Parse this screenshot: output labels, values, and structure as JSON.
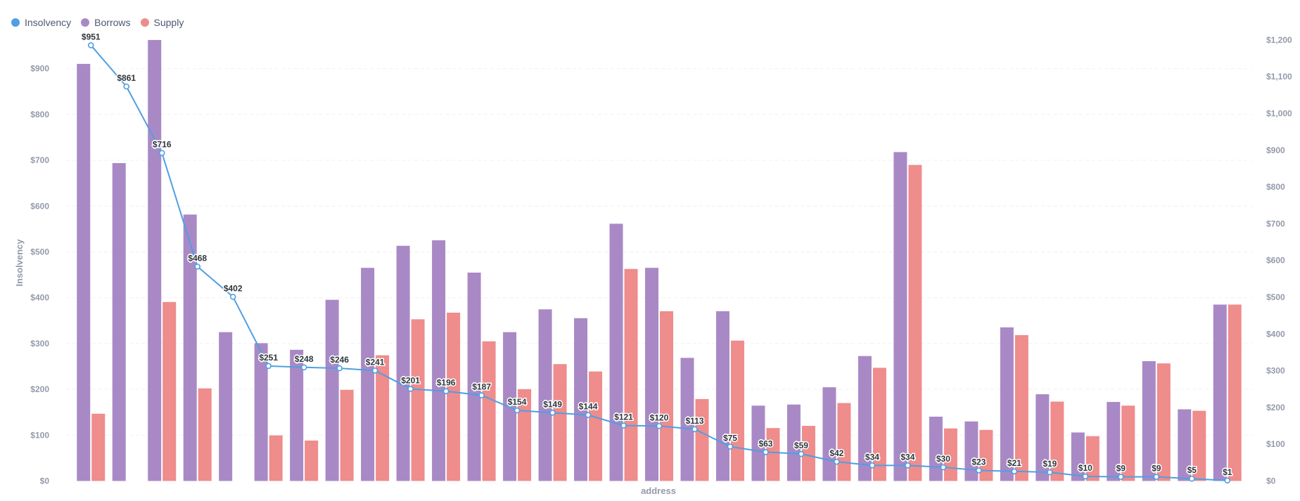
{
  "legend": [
    {
      "name": "Insolvency",
      "color": "#509ee3"
    },
    {
      "name": "Borrows",
      "color": "#a989c5"
    },
    {
      "name": "Supply",
      "color": "#ef8c8c"
    }
  ],
  "chart_data": {
    "type": "bar",
    "xlabel": "address",
    "ylabel": "Insolvency",
    "y_left_lim": [
      0,
      951
    ],
    "y_right_lim": [
      0,
      1200
    ],
    "y_left_ticks": [
      "$0",
      "$100",
      "$200",
      "$300",
      "$400",
      "$500",
      "$600",
      "$700",
      "$800",
      "$900"
    ],
    "y_right_ticks": [
      "$0",
      "$100",
      "$200",
      "$300",
      "$400",
      "$500",
      "$600",
      "$700",
      "$800",
      "$900",
      "$1,000",
      "$1,100",
      "$1,200"
    ],
    "gridlines": true,
    "legend_position": "top-left",
    "x_tick_labels_shown": false,
    "series": [
      {
        "name": "Insolvency",
        "type": "line",
        "axis": "left",
        "color": "#509ee3",
        "values": [
          951,
          861,
          716,
          468,
          402,
          251,
          248,
          246,
          241,
          201,
          196,
          187,
          154,
          149,
          144,
          121,
          120,
          113,
          75,
          63,
          59,
          42,
          34,
          34,
          30,
          23,
          21,
          19,
          10,
          9,
          9,
          5,
          1
        ],
        "labels": [
          "$951",
          "$861",
          "$716",
          "$468",
          "$402",
          "$251",
          "$248",
          "$246",
          "$241",
          "$201",
          "$196",
          "$187",
          "$154",
          "$149",
          "$144",
          "$121",
          "$120",
          "$113",
          "$75",
          "$63",
          "$59",
          "$42",
          "$34",
          "$34",
          "$30",
          "$23",
          "$21",
          "$19",
          "$10",
          "$9",
          "$9",
          "$5",
          "$1"
        ]
      },
      {
        "name": "Borrows",
        "type": "bar",
        "axis": "right",
        "color": "#a989c5",
        "values": [
          1135,
          865,
          1200,
          725,
          405,
          375,
          357,
          493,
          580,
          640,
          655,
          567,
          405,
          467,
          443,
          700,
          580,
          335,
          462,
          205,
          208,
          255,
          340,
          895,
          175,
          162,
          418,
          236,
          132,
          215,
          326,
          195,
          480
        ]
      },
      {
        "name": "Supply",
        "type": "bar",
        "axis": "right",
        "color": "#ef8c8c",
        "values": [
          183,
          0,
          487,
          252,
          0,
          124,
          110,
          248,
          342,
          440,
          458,
          380,
          250,
          318,
          298,
          577,
          462,
          223,
          382,
          144,
          150,
          212,
          308,
          860,
          143,
          139,
          397,
          216,
          122,
          205,
          320,
          191,
          480
        ]
      }
    ]
  }
}
